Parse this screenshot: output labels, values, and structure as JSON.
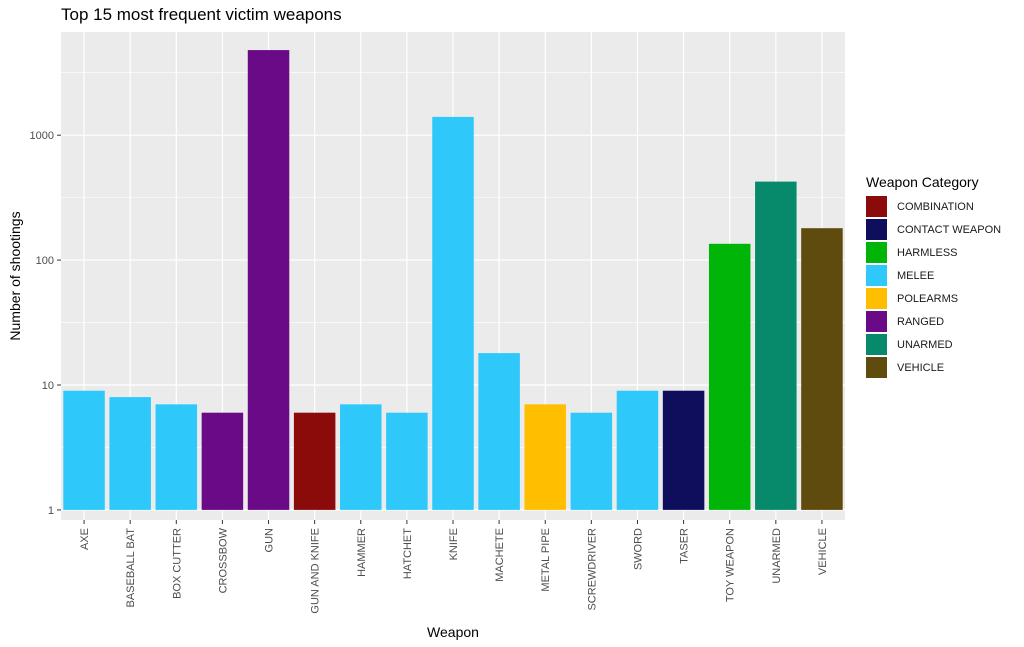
{
  "chart_data": {
    "type": "bar",
    "title": "Top 15 most frequent victim weapons",
    "xlabel": "Weapon",
    "ylabel": "Number of shootings",
    "y_scale": "log10",
    "ylim": [
      0.83,
      6700
    ],
    "y_ticks": [
      1,
      10,
      100,
      1000
    ],
    "y_tick_labels": [
      "1",
      "10",
      "100",
      "1000"
    ],
    "grid": true,
    "legend_position": "right",
    "legend_title": "Weapon Category",
    "categories": [
      "AXE",
      "BASEBALL BAT",
      "BOX CUTTER",
      "CROSSBOW",
      "GUN",
      "GUN AND KNIFE",
      "HAMMER",
      "HATCHET",
      "KNIFE",
      "MACHETE",
      "METAL PIPE",
      "SCREWDRIVER",
      "SWORD",
      "TASER",
      "TOY WEAPON",
      "UNARMED",
      "VEHICLE"
    ],
    "values": [
      9,
      8,
      7,
      6,
      4800,
      6,
      7,
      6,
      1400,
      18,
      7,
      6,
      9,
      9,
      135,
      425,
      180
    ],
    "bar_category": [
      "MELEE",
      "MELEE",
      "MELEE",
      "RANGED",
      "RANGED",
      "COMBINATION",
      "MELEE",
      "MELEE",
      "MELEE",
      "MELEE",
      "POLEARMS",
      "MELEE",
      "MELEE",
      "CONTACT WEAPON",
      "HARMLESS",
      "UNARMED",
      "VEHICLE"
    ],
    "legend": [
      {
        "label": "COMBINATION",
        "color": "#8b0a0a"
      },
      {
        "label": "CONTACT WEAPON",
        "color": "#0e0e5c"
      },
      {
        "label": "HARMLESS",
        "color": "#00b508"
      },
      {
        "label": "MELEE",
        "color": "#2ec9fa"
      },
      {
        "label": "POLEARMS",
        "color": "#ffbe00"
      },
      {
        "label": "RANGED",
        "color": "#6a0a87"
      },
      {
        "label": "UNARMED",
        "color": "#068a6b"
      },
      {
        "label": "VEHICLE",
        "color": "#5f4b0d"
      }
    ],
    "panel_background": "#ebebeb",
    "grid_color": "#ffffff"
  }
}
